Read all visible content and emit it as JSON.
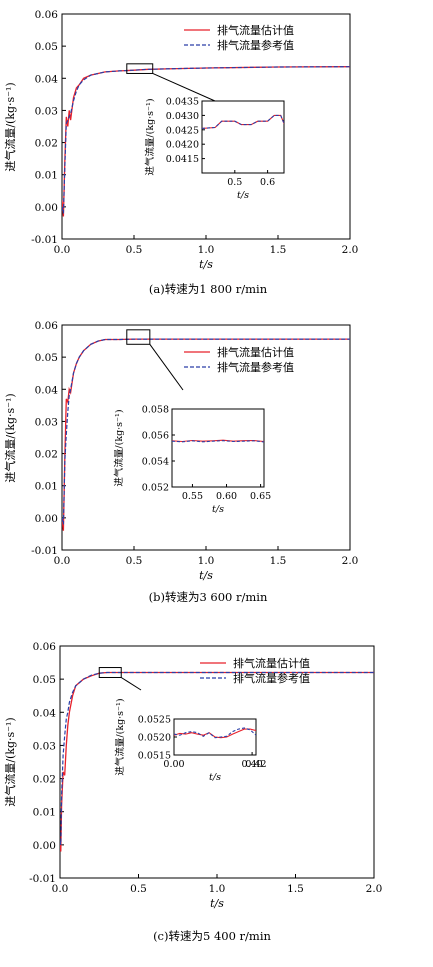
{
  "figure": {
    "captions": [
      "(a)转速为1 800 r/min",
      "(b)转速为3 600 r/min",
      "(c)转速为5 400 r/min"
    ]
  },
  "colors": {
    "estimate": "#e8202a",
    "reference": "#2a3fa8",
    "axis": "#000000"
  },
  "chart_data": [
    {
      "type": "line",
      "title": "",
      "xlabel": "t/s",
      "ylabel": "进气流量/(kg·s⁻¹)",
      "xlim": [
        0,
        2.0
      ],
      "ylim": [
        -0.01,
        0.06
      ],
      "xticks": [
        "0.0",
        "0.5",
        "1.0",
        "1.5",
        "2.0"
      ],
      "yticks": [
        "-0.01",
        "0.00",
        "0.01",
        "0.02",
        "0.03",
        "0.04",
        "0.05",
        "0.06"
      ],
      "legend": "top-right",
      "series": [
        {
          "name": "排气流量估计值",
          "style": "solid",
          "x": [
            0,
            0.01,
            0.02,
            0.03,
            0.04,
            0.05,
            0.06,
            0.08,
            0.1,
            0.12,
            0.15,
            0.2,
            0.25,
            0.3,
            0.4,
            0.5,
            0.6,
            0.8,
            1.0,
            1.5,
            2.0
          ],
          "y": [
            0.002,
            -0.003,
            0.015,
            0.028,
            0.025,
            0.03,
            0.027,
            0.034,
            0.037,
            0.038,
            0.04,
            0.041,
            0.0415,
            0.042,
            0.0423,
            0.0425,
            0.0428,
            0.043,
            0.0432,
            0.0435,
            0.0436
          ]
        },
        {
          "name": "排气流量参考值",
          "style": "dashed",
          "x": [
            0,
            0.01,
            0.02,
            0.03,
            0.04,
            0.05,
            0.06,
            0.08,
            0.1,
            0.12,
            0.15,
            0.2,
            0.25,
            0.3,
            0.4,
            0.5,
            0.6,
            0.8,
            1.0,
            1.5,
            2.0
          ],
          "y": [
            0.0,
            -0.002,
            0.013,
            0.026,
            0.027,
            0.028,
            0.029,
            0.033,
            0.036,
            0.038,
            0.0395,
            0.041,
            0.0415,
            0.042,
            0.0423,
            0.0425,
            0.0428,
            0.043,
            0.0432,
            0.0435,
            0.0436
          ]
        }
      ],
      "inset": {
        "ylabel": "进气流量/(kg·s⁻¹)",
        "xlabel": "t/s",
        "xlim": [
          0.4,
          0.65
        ],
        "ylim": [
          0.041,
          0.0435
        ],
        "xticks": [
          "0.5",
          "0.6"
        ],
        "yticks": [
          "0.0415",
          "0.0420",
          "0.0425",
          "0.0430",
          "0.0435"
        ],
        "series": [
          {
            "name": "排气流量估计值",
            "x": [
              0.4,
              0.44,
              0.46,
              0.5,
              0.52,
              0.55,
              0.57,
              0.6,
              0.62,
              0.64,
              0.65
            ],
            "y": [
              0.04255,
              0.04258,
              0.0428,
              0.0428,
              0.04268,
              0.04268,
              0.0428,
              0.0428,
              0.043,
              0.043,
              0.04272
            ]
          },
          {
            "name": "排气流量参考值",
            "x": [
              0.4,
              0.44,
              0.46,
              0.5,
              0.52,
              0.55,
              0.57,
              0.6,
              0.62,
              0.64,
              0.65
            ],
            "y": [
              0.04255,
              0.04258,
              0.0428,
              0.0428,
              0.04268,
              0.04268,
              0.0428,
              0.0428,
              0.043,
              0.043,
              0.04272
            ]
          }
        ]
      }
    },
    {
      "type": "line",
      "title": "",
      "xlabel": "t/s",
      "ylabel": "进气流量/(kg·s⁻¹)",
      "xlim": [
        0,
        2.0
      ],
      "ylim": [
        -0.01,
        0.06
      ],
      "xticks": [
        "0.0",
        "0.5",
        "1.0",
        "1.5",
        "2.0"
      ],
      "yticks": [
        "-0.01",
        "0.00",
        "0.01",
        "0.02",
        "0.03",
        "0.04",
        "0.05",
        "0.06"
      ],
      "legend": "top-right",
      "series": [
        {
          "name": "排气流量估计值",
          "style": "solid",
          "x": [
            0,
            0.01,
            0.02,
            0.03,
            0.04,
            0.05,
            0.06,
            0.08,
            0.1,
            0.12,
            0.15,
            0.2,
            0.25,
            0.3,
            0.4,
            0.5,
            0.7,
            1.0,
            1.5,
            2.0
          ],
          "y": [
            0.0,
            -0.004,
            0.02,
            0.037,
            0.036,
            0.04,
            0.039,
            0.045,
            0.048,
            0.05,
            0.052,
            0.054,
            0.055,
            0.0555,
            0.0555,
            0.0556,
            0.0556,
            0.0556,
            0.0556,
            0.0556
          ]
        },
        {
          "name": "排气流量参考值",
          "style": "dashed",
          "x": [
            0,
            0.01,
            0.02,
            0.03,
            0.04,
            0.05,
            0.06,
            0.08,
            0.1,
            0.12,
            0.15,
            0.2,
            0.25,
            0.3,
            0.4,
            0.5,
            0.7,
            1.0,
            1.5,
            2.0
          ],
          "y": [
            0.0,
            -0.002,
            0.018,
            0.026,
            0.033,
            0.038,
            0.04,
            0.045,
            0.048,
            0.05,
            0.052,
            0.054,
            0.055,
            0.0555,
            0.0555,
            0.0556,
            0.0556,
            0.0556,
            0.0556,
            0.0556
          ]
        }
      ],
      "inset": {
        "ylabel": "进气流量/(kg·s⁻¹)",
        "xlabel": "t/s",
        "xlim": [
          0.52,
          0.655
        ],
        "ylim": [
          0.052,
          0.058
        ],
        "xticks": [
          "0.55",
          "0.60",
          "0.65"
        ],
        "yticks": [
          "0.052",
          "0.054",
          "0.056",
          "0.058"
        ],
        "series": [
          {
            "name": "排气流量估计值",
            "x": [
              0.52,
              0.535,
              0.55,
              0.565,
              0.58,
              0.595,
              0.61,
              0.625,
              0.64,
              0.655
            ],
            "y": [
              0.05555,
              0.0555,
              0.05558,
              0.05552,
              0.05555,
              0.0556,
              0.05552,
              0.05556,
              0.05558,
              0.0555
            ]
          },
          {
            "name": "排气流量参考值",
            "x": [
              0.52,
              0.535,
              0.55,
              0.565,
              0.58,
              0.595,
              0.61,
              0.625,
              0.64,
              0.655
            ],
            "y": [
              0.05552,
              0.05548,
              0.05555,
              0.05548,
              0.05552,
              0.05556,
              0.0555,
              0.05552,
              0.05555,
              0.05547
            ]
          }
        ]
      }
    },
    {
      "type": "line",
      "title": "",
      "xlabel": "t/s",
      "ylabel": "进气流量/(kg·s⁻¹)",
      "xlim": [
        0,
        2.0
      ],
      "ylim": [
        -0.01,
        0.06
      ],
      "xticks": [
        "0.0",
        "0.5",
        "1.0",
        "1.5",
        "2.0"
      ],
      "yticks": [
        "-0.01",
        "0.00",
        "0.01",
        "0.02",
        "0.03",
        "0.04",
        "0.05",
        "0.06"
      ],
      "legend": "top-right",
      "series": [
        {
          "name": "排气流量估计值",
          "style": "solid",
          "x": [
            0,
            0.005,
            0.01,
            0.02,
            0.03,
            0.04,
            0.05,
            0.06,
            0.08,
            0.1,
            0.15,
            0.2,
            0.25,
            0.3,
            0.4,
            0.5,
            0.7,
            1.0,
            1.5,
            2.0
          ],
          "y": [
            0.0,
            -0.002,
            0.012,
            0.022,
            0.021,
            0.03,
            0.036,
            0.04,
            0.045,
            0.048,
            0.05,
            0.051,
            0.0518,
            0.052,
            0.052,
            0.052,
            0.052,
            0.052,
            0.052,
            0.052
          ]
        },
        {
          "name": "排气流量参考值",
          "style": "dashed",
          "x": [
            0,
            0.005,
            0.01,
            0.02,
            0.03,
            0.04,
            0.05,
            0.06,
            0.08,
            0.1,
            0.15,
            0.2,
            0.25,
            0.3,
            0.4,
            0.5,
            0.7,
            1.0,
            1.5,
            2.0
          ],
          "y": [
            0.001,
            0.0,
            0.015,
            0.027,
            0.033,
            0.038,
            0.04,
            0.043,
            0.046,
            0.048,
            0.05,
            0.0512,
            0.0518,
            0.052,
            0.052,
            0.052,
            0.052,
            0.052,
            0.052,
            0.052
          ]
        }
      ],
      "inset": {
        "ylabel": "进气流量/(kg·s⁻¹)",
        "xlabel": "t/s",
        "xlim": [
          0.0,
          0.42
        ],
        "ylim": [
          0.0515,
          0.0525
        ],
        "xticks": [
          "0.00",
          "0.40",
          "0.42"
        ],
        "yticks": [
          "0.0515",
          "0.0520",
          "0.0525"
        ],
        "series": [
          {
            "name": "排气流量估计值",
            "x": [
              0.0,
              0.03,
              0.06,
              0.09,
              0.12,
              0.15,
              0.18,
              0.21,
              0.24,
              0.27,
              0.3,
              0.33,
              0.36,
              0.39,
              0.42
            ],
            "y": [
              0.05205,
              0.0521,
              0.05208,
              0.05212,
              0.05208,
              0.05205,
              0.05212,
              0.052,
              0.05198,
              0.052,
              0.05208,
              0.05215,
              0.05222,
              0.05222,
              0.05218
            ]
          },
          {
            "name": "排气流量参考值",
            "x": [
              0.0,
              0.03,
              0.06,
              0.09,
              0.12,
              0.15,
              0.18,
              0.21,
              0.24,
              0.27,
              0.3,
              0.33,
              0.36,
              0.39,
              0.42
            ],
            "y": [
              0.05208,
              0.05205,
              0.05212,
              0.05215,
              0.05212,
              0.05202,
              0.05212,
              0.05198,
              0.052,
              0.05202,
              0.05215,
              0.05222,
              0.05225,
              0.0522,
              0.05205
            ]
          }
        ]
      }
    }
  ]
}
